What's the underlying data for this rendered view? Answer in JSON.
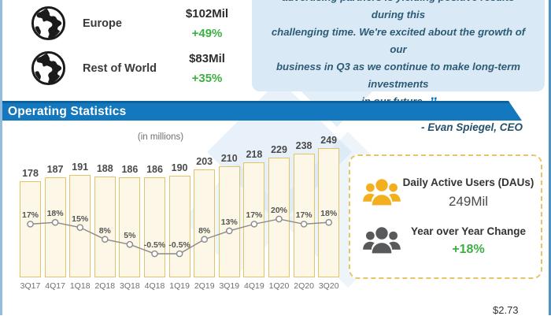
{
  "colors": {
    "accent_blue": "#1378be",
    "positive_green": "#3cb043",
    "bar_fill": "#fcf7e6",
    "bar_border": "#e2c468",
    "panel_dash_gold": "#e7c565",
    "quote_bg": "#d9e9f6",
    "icon_yellow": "#f2b01e",
    "icon_gray": "#58595b"
  },
  "regional": {
    "rows": [
      {
        "label": "Europe",
        "value": "$102Mil",
        "change": "+49%"
      },
      {
        "label": "Rest of World",
        "value": "$83Mil",
        "change": "+35%"
      }
    ]
  },
  "quote": {
    "lines": [
      "advertising partners is yielding positive results during this",
      "challenging time. We're excited about the growth of our",
      "business in Q3 as we continue to make long-term investments",
      "in our future."
    ],
    "closing_mark": "”",
    "attribution": "- Evan Spiegel, CEO"
  },
  "section_header": {
    "title": "Operating Statistics"
  },
  "chart_data": {
    "type": "bar",
    "note": "(in millions)",
    "categories": [
      "3Q17",
      "4Q17",
      "1Q18",
      "2Q18",
      "3Q18",
      "4Q18",
      "1Q19",
      "2Q19",
      "3Q19",
      "4Q19",
      "1Q20",
      "2Q20",
      "3Q20"
    ],
    "series": [
      {
        "name": "Daily Active Users",
        "type": "bar",
        "unit": "millions",
        "values": [
          178,
          187,
          191,
          188,
          186,
          186,
          190,
          203,
          210,
          218,
          229,
          238,
          249
        ]
      },
      {
        "name": "Year over Year Change",
        "type": "line",
        "unit": "%",
        "values": [
          17,
          18,
          15,
          8,
          5,
          -0.5,
          -0.5,
          8,
          13,
          17,
          20,
          17,
          18
        ],
        "labels": [
          "17%",
          "18%",
          "15%",
          "8%",
          "5%",
          "-0.5%",
          "-0.5%",
          "8%",
          "13%",
          "17%",
          "20%",
          "17%",
          "18%"
        ]
      }
    ],
    "legend": false,
    "grid": false
  },
  "stats_panel": {
    "items": [
      {
        "label": "Daily Active Users (DAUs)",
        "value": "249Mil",
        "icon": "users-group-yellow"
      },
      {
        "label": "Year over Year Change",
        "value": "+18%",
        "icon": "users-group-gray"
      }
    ]
  },
  "footer": {
    "partial_value": "$2.73"
  }
}
